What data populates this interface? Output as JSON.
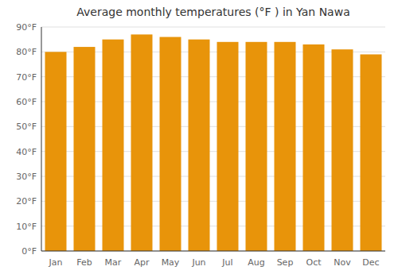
{
  "chart_data": {
    "type": "bar",
    "title": "Average monthly temperatures (°F ) in Yan Nawa",
    "categories": [
      "Jan",
      "Feb",
      "Mar",
      "Apr",
      "May",
      "Jun",
      "Jul",
      "Aug",
      "Sep",
      "Oct",
      "Nov",
      "Dec"
    ],
    "values": [
      80,
      82,
      85,
      87,
      86,
      85,
      84,
      84,
      84,
      83,
      81,
      79
    ],
    "color": "#E8940A",
    "ylim": [
      0,
      90
    ],
    "yticks": [
      {
        "value": 0,
        "label": "0°F"
      },
      {
        "value": 10,
        "label": "10°F"
      },
      {
        "value": 20,
        "label": "20°F"
      },
      {
        "value": 30,
        "label": "30°F"
      },
      {
        "value": 40,
        "label": "40°F"
      },
      {
        "value": 50,
        "label": "50°F"
      },
      {
        "value": 60,
        "label": "60°F"
      },
      {
        "value": 70,
        "label": "70°F"
      },
      {
        "value": 80,
        "label": "80°F"
      },
      {
        "value": 90,
        "label": "90°F"
      }
    ],
    "grid": true
  }
}
